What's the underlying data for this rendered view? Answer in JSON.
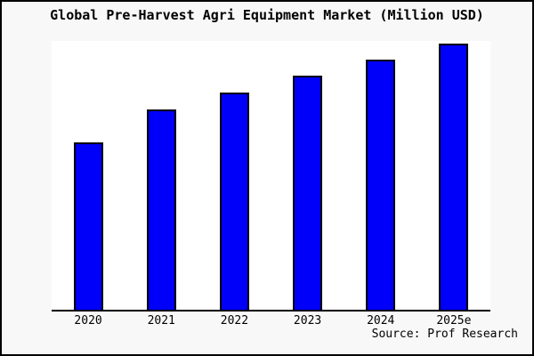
{
  "window": {
    "background_color": "#f8f8f8",
    "border_color": "#000000"
  },
  "chart_data": {
    "type": "bar",
    "title": "Global Pre-Harvest Agri Equipment Market (Million USD)",
    "unit": "Million USD",
    "categories": [
      "2020",
      "2021",
      "2022",
      "2023",
      "2024",
      "2025e"
    ],
    "values_relative": [
      0.618,
      0.74,
      0.803,
      0.865,
      0.924,
      0.983
    ],
    "y_axis": {
      "labels_visible": false,
      "gridlines": false
    },
    "legend_position": "none",
    "bar_color": "#0000fa",
    "bar_border_color": "#000000",
    "plot_background": "#ffffff",
    "source_label": "Source: Prof Research"
  }
}
